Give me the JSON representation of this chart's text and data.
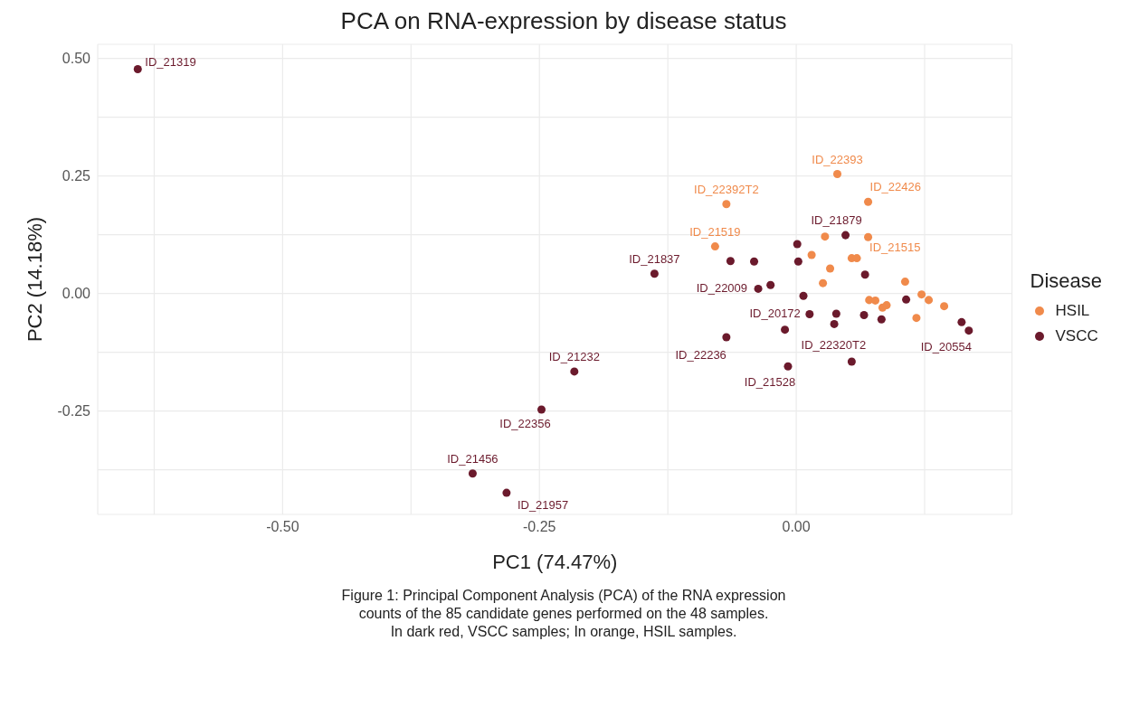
{
  "chart_data": {
    "type": "scatter",
    "title": "PCA on RNA-expression by disease status",
    "xlabel": "PC1 (74.47%)",
    "ylabel": "PC2 (14.18%)",
    "legend_title": "Disease",
    "legend": "right",
    "grid": true,
    "marker": "circle",
    "xlim": [
      -0.68,
      0.21
    ],
    "xticks": [
      {
        "value": -0.625,
        "label": null
      },
      {
        "value": -0.5,
        "label": "-0.50"
      },
      {
        "value": -0.375,
        "label": null
      },
      {
        "value": -0.25,
        "label": "-0.25"
      },
      {
        "value": -0.125,
        "label": null
      },
      {
        "value": 0,
        "label": "0.00"
      },
      {
        "value": 0.125,
        "label": null
      }
    ],
    "ylim": [
      -0.47,
      0.53
    ],
    "yticks": [
      {
        "value": -0.375,
        "label": null
      },
      {
        "value": -0.25,
        "label": "-0.25"
      },
      {
        "value": -0.125,
        "label": null
      },
      {
        "value": 0,
        "label": "0.00"
      },
      {
        "value": 0.125,
        "label": null
      },
      {
        "value": 0.25,
        "label": "0.25"
      },
      {
        "value": 0.375,
        "label": null
      },
      {
        "value": 0.5,
        "label": "0.50"
      }
    ],
    "series": [
      {
        "name": "HSIL",
        "color": "#f08a4b",
        "x": [
          0.04,
          -0.068,
          0.07,
          0.028,
          0.07,
          -0.079,
          0.015,
          0.054,
          0.059,
          0.033,
          0.026,
          0.106,
          0.071,
          0.077,
          0.084,
          0.088,
          0.122,
          0.129,
          0.144,
          0.117
        ],
        "values": [
          0.254,
          0.19,
          0.195,
          0.121,
          0.12,
          0.1,
          0.082,
          0.075,
          0.075,
          0.053,
          0.022,
          0.025,
          -0.014,
          -0.015,
          -0.03,
          -0.025,
          -0.002,
          -0.014,
          -0.027,
          -0.052
        ]
      },
      {
        "name": "VSCC",
        "color": "#6b1a2c",
        "x": [
          -0.641,
          -0.138,
          -0.216,
          -0.248,
          -0.315,
          -0.282,
          0.048,
          0.001,
          -0.064,
          -0.041,
          0.002,
          0.067,
          -0.037,
          -0.025,
          0.007,
          0.107,
          0.013,
          0.039,
          0.037,
          0.066,
          0.083,
          -0.011,
          -0.068,
          0.161,
          0.168,
          -0.008,
          0.054
        ],
        "values": [
          0.477,
          0.042,
          -0.166,
          -0.247,
          -0.383,
          -0.424,
          0.124,
          0.105,
          0.069,
          0.068,
          0.068,
          0.04,
          0.01,
          0.018,
          -0.005,
          -0.013,
          -0.044,
          -0.043,
          -0.065,
          -0.046,
          -0.055,
          -0.077,
          -0.093,
          -0.061,
          -0.079,
          -0.155,
          -0.145
        ]
      }
    ],
    "annotations": [
      {
        "text": "ID_21319",
        "x": -0.641,
        "y": 0.477
      },
      {
        "text": "ID_22393",
        "x": 0.04,
        "y": 0.254
      },
      {
        "text": "ID_22392T2",
        "x": -0.068,
        "y": 0.19
      },
      {
        "text": "ID_22426",
        "x": 0.07,
        "y": 0.195
      },
      {
        "text": "ID_21519",
        "x": -0.079,
        "y": 0.1
      },
      {
        "text": "ID_21879",
        "x": 0.048,
        "y": 0.124
      },
      {
        "text": "ID_21515",
        "x": 0.059,
        "y": 0.075
      },
      {
        "text": "ID_21837",
        "x": -0.138,
        "y": 0.042
      },
      {
        "text": "ID_22009",
        "x": -0.037,
        "y": 0.01
      },
      {
        "text": "ID_20172",
        "x": 0.013,
        "y": -0.044
      },
      {
        "text": "ID_22236",
        "x": -0.068,
        "y": -0.093
      },
      {
        "text": "ID_22320T2",
        "x": 0.054,
        "y": -0.145
      },
      {
        "text": "ID_20554",
        "x": 0.168,
        "y": -0.079
      },
      {
        "text": "ID_21528",
        "x": -0.008,
        "y": -0.155
      },
      {
        "text": "ID_21232",
        "x": -0.216,
        "y": -0.166
      },
      {
        "text": "ID_22356",
        "x": -0.248,
        "y": -0.247
      },
      {
        "text": "ID_21456",
        "x": -0.315,
        "y": -0.383
      },
      {
        "text": "ID_21957",
        "x": -0.282,
        "y": -0.424
      },
      "Figure 1: Principal Component Analysis (PCA) of the RNA expression",
      "counts of the 85 candidate genes performed on the 48 samples.",
      "In dark red, VSCC samples; In orange, HSIL samples."
    ]
  }
}
